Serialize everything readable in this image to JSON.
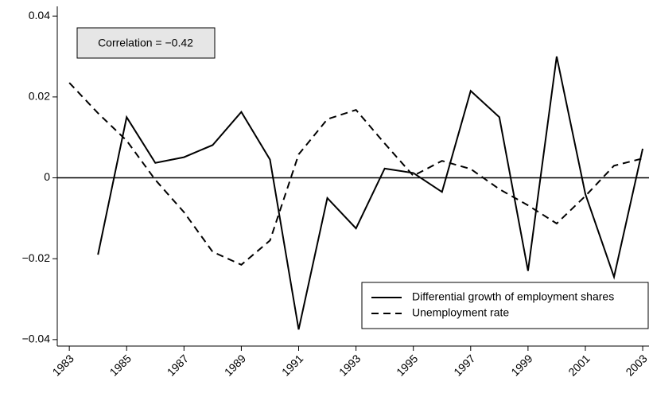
{
  "chart_data": {
    "type": "line",
    "annotation": "Correlation = −0.42",
    "x": [
      1983,
      1984,
      1985,
      1986,
      1987,
      1988,
      1989,
      1990,
      1991,
      1992,
      1993,
      1994,
      1995,
      1996,
      1997,
      1998,
      1999,
      2000,
      2001,
      2002,
      2003
    ],
    "series": [
      {
        "name": "Differential growth of employment shares",
        "color": "#000000",
        "line_style": "solid",
        "values": [
          null,
          -0.019,
          0.015,
          0.0037,
          0.0051,
          0.0081,
          0.0163,
          0.0045,
          -0.0375,
          -0.005,
          -0.0125,
          0.0023,
          0.0012,
          -0.0035,
          0.0215,
          0.015,
          -0.023,
          0.03,
          -0.004,
          -0.0245,
          0.0072
        ]
      },
      {
        "name": "Unemployment rate",
        "color": "#000000",
        "line_style": "dashed",
        "values": [
          0.0235,
          0.016,
          0.0092,
          -0.0005,
          -0.0085,
          -0.0183,
          -0.0215,
          -0.0155,
          0.0058,
          0.0145,
          0.0168,
          0.0085,
          0.0005,
          0.0042,
          0.0022,
          -0.0028,
          -0.0068,
          -0.0113,
          -0.0045,
          0.003,
          0.0048
        ]
      }
    ],
    "xlim": [
      1982.58,
      2003.22
    ],
    "xticks": [
      1983,
      1985,
      1987,
      1989,
      1991,
      1993,
      1995,
      1997,
      1999,
      2001,
      2003
    ],
    "ylim": [
      -0.0416,
      0.0424
    ],
    "yticks": [
      0.04,
      0.02,
      0,
      {
        "value": -0.02,
        "label": "−0.02"
      },
      {
        "value": -0.04,
        "label": "−0.04"
      }
    ],
    "hline": 0,
    "grid": false,
    "legend": "lower right"
  }
}
